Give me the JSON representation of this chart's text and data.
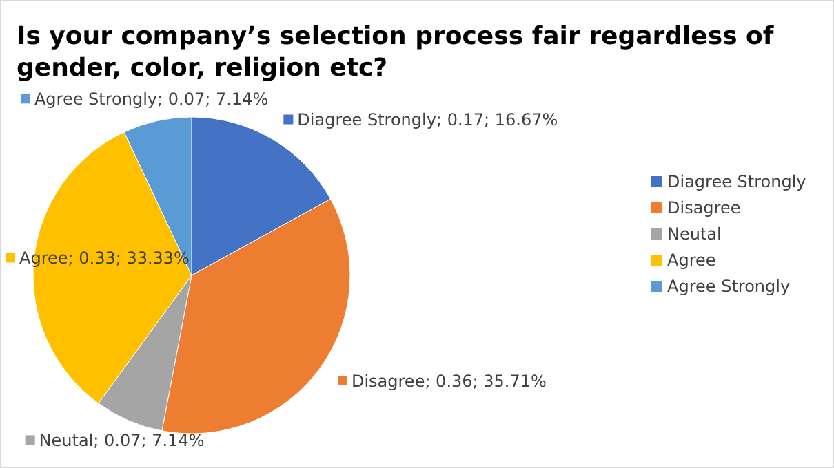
{
  "chart_data": {
    "type": "pie",
    "title": "Is your company’s selection process fair regardless of gender, color, religion etc?",
    "categories": [
      "Diagree Strongly",
      "Disagree",
      "Neutal",
      "Agree",
      "Agree Strongly"
    ],
    "values": [
      0.17,
      0.36,
      0.07,
      0.33,
      0.07
    ],
    "value_labels": [
      "Diagree Strongly; 0.17; 16.67%",
      "Disagree; 0.36; 35.71%",
      "Neutal; 0.07; 7.14%",
      "Agree; 0.33; 33.33%",
      "Agree Strongly; 0.07; 7.14%"
    ],
    "colors": [
      "#4472c4",
      "#ed7d31",
      "#a5a5a5",
      "#ffc000",
      "#5b9bd5"
    ],
    "legend": "right"
  }
}
